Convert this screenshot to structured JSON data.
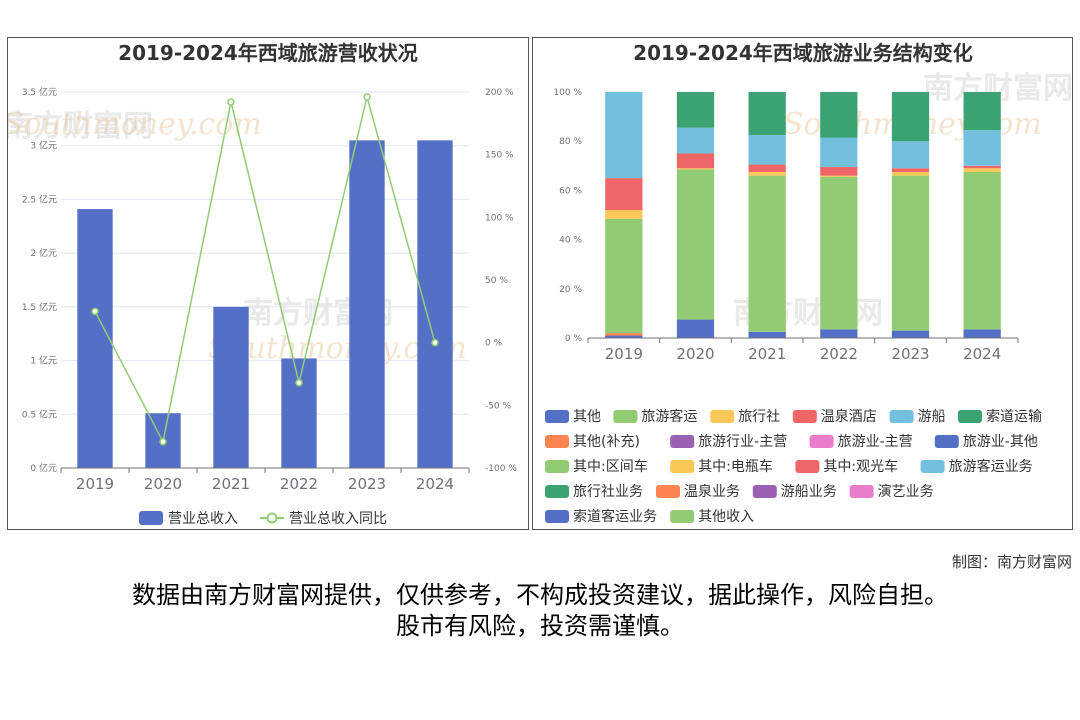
{
  "left_chart": {
    "title": "2019-2024年西域旅游营收状况",
    "legend": [
      "营业总收入",
      "营业总收入同比"
    ],
    "colors": {
      "bar": "#5470c6",
      "line": "#91cc75"
    }
  },
  "right_chart": {
    "title": "2019-2024年西域旅游业务结构变化"
  },
  "watermark": {
    "brand": "南方财富网",
    "url": "Southmoney.com"
  },
  "credit": "制图：南方财富网",
  "disclaimer": {
    "line1": "数据由南方财富网提供，仅供参考，不构成投资建议，据此操作，风险自担。",
    "line2": "股市有风险，投资需谨慎。"
  },
  "chart_data": [
    {
      "type": "bar",
      "title": "2019-2024年西域旅游营收状况",
      "categories": [
        "2019",
        "2020",
        "2021",
        "2022",
        "2023",
        "2024"
      ],
      "left_axis": {
        "ticks": [
          "0 亿元",
          "0.5 亿元",
          "1 亿元",
          "1.5 亿元",
          "2 亿元",
          "2.5 亿元",
          "3 亿元",
          "3.5 亿元"
        ],
        "ylim": [
          0,
          3.5
        ],
        "unit": "亿元"
      },
      "right_axis": {
        "ticks": [
          "-100 %",
          "-50 %",
          "0 %",
          "50 %",
          "100 %",
          "150 %",
          "200 %"
        ],
        "ylim": [
          -100,
          200
        ],
        "unit": "%"
      },
      "series": [
        {
          "name": "营业总收入",
          "type": "bar",
          "axis": "left",
          "values": [
            2.41,
            0.51,
            1.5,
            1.02,
            3.05,
            3.05
          ]
        },
        {
          "name": "营业总收入同比",
          "type": "line",
          "axis": "right",
          "values": [
            25,
            -79,
            192,
            -32,
            196,
            0
          ]
        }
      ],
      "grid": true,
      "legend_position": "bottom"
    },
    {
      "type": "bar",
      "stacked": true,
      "title": "2019-2024年西域旅游业务结构变化",
      "categories": [
        "2019",
        "2020",
        "2021",
        "2022",
        "2023",
        "2024"
      ],
      "y_ticks": [
        "0 %",
        "20 %",
        "40 %",
        "60 %",
        "80 %",
        "100 %"
      ],
      "ylim": [
        0,
        100
      ],
      "series": [
        {
          "name": "其他",
          "color": "#5470c6",
          "values": [
            1,
            0,
            0,
            0,
            0,
            0
          ]
        },
        {
          "name": "旅游客运",
          "color": "#91cc75",
          "values": [
            0,
            0,
            0,
            0,
            0,
            0
          ]
        },
        {
          "name": "旅行社",
          "color": "#fac858",
          "values": [
            0,
            0,
            0,
            0,
            0,
            0
          ]
        },
        {
          "name": "温泉酒店",
          "color": "#ee6666",
          "values": [
            0,
            0,
            0,
            0,
            0,
            0
          ]
        },
        {
          "name": "游船",
          "color": "#73c0de",
          "values": [
            0,
            0,
            0,
            0,
            0,
            0
          ]
        },
        {
          "name": "索道运输",
          "color": "#3ba272",
          "values": [
            0,
            0,
            0,
            0,
            0,
            0
          ]
        },
        {
          "name": "其他(补充)",
          "color": "#fc8452",
          "values": [
            1,
            0,
            0,
            0,
            0,
            0
          ]
        },
        {
          "name": "旅游行业-主营",
          "color": "#9a60b4",
          "values": [
            0,
            0,
            0,
            0,
            0,
            0
          ]
        },
        {
          "name": "旅游业-主营",
          "color": "#ea7ccc",
          "values": [
            0,
            0,
            0,
            0,
            0,
            0
          ]
        },
        {
          "name": "旅游业-其他",
          "color": "#5470c6",
          "values": [
            0,
            7.5,
            2.5,
            3.5,
            3,
            3.5
          ]
        },
        {
          "name": "其中:区间车",
          "color": "#91cc75",
          "values": [
            46.5,
            61,
            63.5,
            62,
            63,
            64
          ]
        },
        {
          "name": "其中:电瓶车",
          "color": "#fac858",
          "values": [
            3.5,
            0.5,
            1.5,
            0.5,
            1.5,
            1.5
          ]
        },
        {
          "name": "其中:观光车",
          "color": "#ee6666",
          "values": [
            13,
            6,
            3,
            3.5,
            1.5,
            1
          ]
        },
        {
          "name": "旅游客运业务",
          "color": "#73c0de",
          "values": [
            35,
            10.5,
            12,
            12,
            11,
            14.5
          ]
        },
        {
          "name": "旅行社业务",
          "color": "#3ba272",
          "values": [
            0,
            14.5,
            17.5,
            18.5,
            20,
            15.5
          ]
        },
        {
          "name": "温泉业务",
          "color": "#fc8452",
          "values": [
            0,
            0,
            0,
            0,
            0,
            0
          ]
        },
        {
          "name": "游船业务",
          "color": "#9a60b4",
          "values": [
            0,
            0,
            0,
            0,
            0,
            0
          ]
        },
        {
          "name": "演艺业务",
          "color": "#ea7ccc",
          "values": [
            0,
            0,
            0,
            0,
            0,
            0
          ]
        },
        {
          "name": "索道客运业务",
          "color": "#5470c6",
          "values": [
            0,
            0,
            0,
            0,
            0,
            0
          ]
        },
        {
          "name": "其他收入",
          "color": "#91cc75",
          "values": [
            0,
            0,
            0,
            0,
            0,
            0
          ]
        }
      ],
      "grid": false,
      "legend_position": "bottom"
    }
  ]
}
